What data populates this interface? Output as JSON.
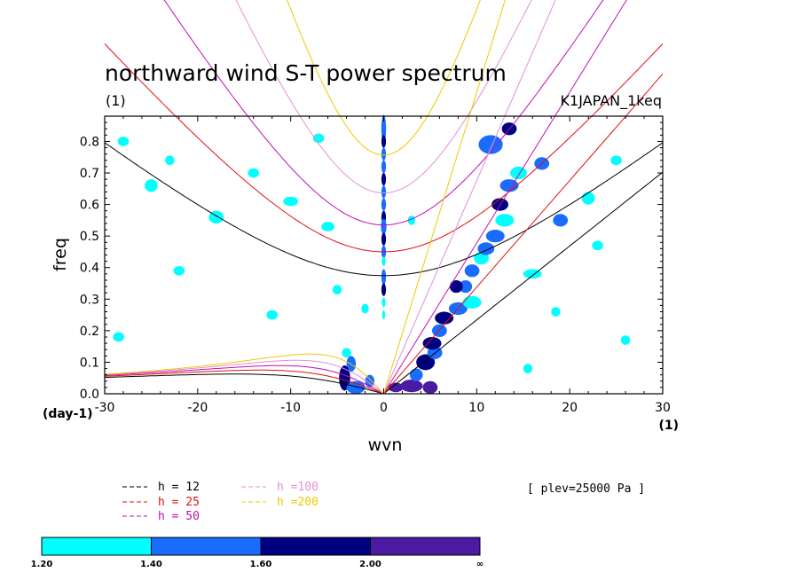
{
  "chart_data": {
    "type": "contour",
    "title": "northward wind S-T power spectrum",
    "subtitle_left": "(1)",
    "subtitle_right": "K1JAPAN_1keq",
    "xlabel": "wvn",
    "ylabel": "freq",
    "x_unit_label": "(1)",
    "y_unit_label": "(day-1)",
    "xlim": [
      -30,
      30
    ],
    "ylim": [
      0,
      0.88
    ],
    "x_ticks": [
      -30,
      -20,
      -10,
      0,
      10,
      20,
      30
    ],
    "x_tick_labels": [
      "-30",
      "-20",
      "-10",
      "0",
      "10",
      "20",
      "30"
    ],
    "y_ticks": [
      0.0,
      0.1,
      0.2,
      0.3,
      0.4,
      0.5,
      0.6,
      0.7,
      0.8
    ],
    "y_tick_labels": [
      "0.0",
      "0.1",
      "0.2",
      "0.3",
      "0.4",
      "0.5",
      "0.6",
      "0.7",
      "0.8"
    ],
    "annotation": "[ plev=25000 Pa ]",
    "dispersion_curves": [
      {
        "label": "h = 12",
        "h": 12,
        "color": "#000000"
      },
      {
        "label": "h = 25",
        "h": 25,
        "color": "#e01010"
      },
      {
        "label": "h = 50",
        "h": 50,
        "color": "#c010b0"
      },
      {
        "label": "h =100",
        "h": 100,
        "color": "#e090d8"
      },
      {
        "label": "h =200",
        "h": 200,
        "color": "#f0c800"
      }
    ],
    "colorbar": {
      "levels": [
        "1.20",
        "1.40",
        "1.60",
        "2.00",
        "∞"
      ],
      "colors": [
        "#00ffff",
        "#1a6cff",
        "#000080",
        "#4a1aa0"
      ]
    },
    "contour_regions": [
      {
        "x": 0,
        "y": 0.84,
        "w": 0.25,
        "h": 0.045,
        "level": 2
      },
      {
        "x": 0,
        "y": 0.8,
        "w": 0.25,
        "h": 0.02,
        "level": 3
      },
      {
        "x": 0,
        "y": 0.76,
        "w": 0.25,
        "h": 0.02,
        "level": 2
      },
      {
        "x": 0,
        "y": 0.72,
        "w": 0.25,
        "h": 0.02,
        "level": 2
      },
      {
        "x": 0,
        "y": 0.68,
        "w": 0.25,
        "h": 0.02,
        "level": 3
      },
      {
        "x": 0,
        "y": 0.64,
        "w": 0.25,
        "h": 0.02,
        "level": 2
      },
      {
        "x": 0,
        "y": 0.6,
        "w": 0.25,
        "h": 0.02,
        "level": 2
      },
      {
        "x": 0,
        "y": 0.56,
        "w": 0.25,
        "h": 0.02,
        "level": 3
      },
      {
        "x": 0,
        "y": 0.53,
        "w": 0.3,
        "h": 0.025,
        "level": 2
      },
      {
        "x": 0,
        "y": 0.49,
        "w": 0.25,
        "h": 0.02,
        "level": 3
      },
      {
        "x": 0,
        "y": 0.45,
        "w": 0.25,
        "h": 0.02,
        "level": 2
      },
      {
        "x": 0,
        "y": 0.42,
        "w": 0.2,
        "h": 0.015,
        "level": 1
      },
      {
        "x": 0,
        "y": 0.37,
        "w": 0.25,
        "h": 0.025,
        "level": 2
      },
      {
        "x": 0,
        "y": 0.33,
        "w": 0.25,
        "h": 0.02,
        "level": 3
      },
      {
        "x": 0,
        "y": 0.29,
        "w": 0.2,
        "h": 0.015,
        "level": 1
      },
      {
        "x": 0,
        "y": 0.25,
        "w": 0.15,
        "h": 0.015,
        "level": 1
      },
      {
        "x": -4,
        "y": 0.13,
        "w": 0.5,
        "h": 0.015,
        "level": 1
      },
      {
        "x": -3.5,
        "y": 0.095,
        "w": 0.5,
        "h": 0.025,
        "level": 2
      },
      {
        "x": -4.2,
        "y": 0.05,
        "w": 0.6,
        "h": 0.04,
        "level": 3
      },
      {
        "x": -3,
        "y": 0.02,
        "w": 1.0,
        "h": 0.02,
        "level": 2
      },
      {
        "x": -1.5,
        "y": 0.04,
        "w": 0.5,
        "h": 0.02,
        "level": 2
      },
      {
        "x": 1.3,
        "y": 0.02,
        "w": 0.8,
        "h": 0.015,
        "level": 4
      },
      {
        "x": 3,
        "y": 0.025,
        "w": 1.2,
        "h": 0.02,
        "level": 4
      },
      {
        "x": 5,
        "y": 0.02,
        "w": 0.8,
        "h": 0.02,
        "level": 4
      },
      {
        "x": 3.5,
        "y": 0.06,
        "w": 0.7,
        "h": 0.02,
        "level": 2
      },
      {
        "x": 4.5,
        "y": 0.1,
        "w": 1.0,
        "h": 0.025,
        "level": 3
      },
      {
        "x": 5.5,
        "y": 0.13,
        "w": 0.8,
        "h": 0.02,
        "level": 2
      },
      {
        "x": 5.2,
        "y": 0.16,
        "w": 1.0,
        "h": 0.02,
        "level": 3
      },
      {
        "x": 6,
        "y": 0.2,
        "w": 0.8,
        "h": 0.02,
        "level": 2
      },
      {
        "x": 6.5,
        "y": 0.24,
        "w": 1.0,
        "h": 0.02,
        "level": 3
      },
      {
        "x": 8,
        "y": 0.27,
        "w": 1.0,
        "h": 0.02,
        "level": 2
      },
      {
        "x": 9.5,
        "y": 0.29,
        "w": 1.0,
        "h": 0.02,
        "level": 1
      },
      {
        "x": 8.8,
        "y": 0.34,
        "w": 0.7,
        "h": 0.02,
        "level": 2
      },
      {
        "x": 7.8,
        "y": 0.34,
        "w": 0.7,
        "h": 0.02,
        "level": 3
      },
      {
        "x": 9.5,
        "y": 0.39,
        "w": 0.8,
        "h": 0.02,
        "level": 2
      },
      {
        "x": 10.5,
        "y": 0.43,
        "w": 0.8,
        "h": 0.02,
        "level": 1
      },
      {
        "x": 11,
        "y": 0.46,
        "w": 0.9,
        "h": 0.02,
        "level": 2
      },
      {
        "x": 12,
        "y": 0.5,
        "w": 1.0,
        "h": 0.02,
        "level": 2
      },
      {
        "x": 13,
        "y": 0.55,
        "w": 1.0,
        "h": 0.02,
        "level": 1
      },
      {
        "x": 12.5,
        "y": 0.6,
        "w": 0.9,
        "h": 0.02,
        "level": 3
      },
      {
        "x": 13.5,
        "y": 0.66,
        "w": 1.0,
        "h": 0.02,
        "level": 2
      },
      {
        "x": 14.5,
        "y": 0.7,
        "w": 0.9,
        "h": 0.02,
        "level": 1
      },
      {
        "x": 11.5,
        "y": 0.79,
        "w": 1.3,
        "h": 0.03,
        "level": 2
      },
      {
        "x": 13.5,
        "y": 0.84,
        "w": 0.8,
        "h": 0.02,
        "level": 3
      },
      {
        "x": 17,
        "y": 0.73,
        "w": 0.8,
        "h": 0.02,
        "level": 2
      },
      {
        "x": 19,
        "y": 0.55,
        "w": 0.8,
        "h": 0.02,
        "level": 2
      },
      {
        "x": 16,
        "y": 0.38,
        "w": 1.0,
        "h": 0.015,
        "level": 1
      },
      {
        "x": 22,
        "y": 0.62,
        "w": 0.7,
        "h": 0.02,
        "level": 1
      },
      {
        "x": -25,
        "y": 0.66,
        "w": 0.7,
        "h": 0.02,
        "level": 1
      },
      {
        "x": -28,
        "y": 0.8,
        "w": 0.6,
        "h": 0.015,
        "level": 1
      },
      {
        "x": -23,
        "y": 0.74,
        "w": 0.5,
        "h": 0.015,
        "level": 1
      },
      {
        "x": -18,
        "y": 0.56,
        "w": 0.8,
        "h": 0.02,
        "level": 1
      },
      {
        "x": -10,
        "y": 0.61,
        "w": 0.8,
        "h": 0.015,
        "level": 1
      },
      {
        "x": -6,
        "y": 0.53,
        "w": 0.7,
        "h": 0.015,
        "level": 1
      },
      {
        "x": -22,
        "y": 0.39,
        "w": 0.6,
        "h": 0.015,
        "level": 1
      },
      {
        "x": -5,
        "y": 0.33,
        "w": 0.5,
        "h": 0.015,
        "level": 1
      },
      {
        "x": -28.5,
        "y": 0.18,
        "w": 0.6,
        "h": 0.015,
        "level": 1
      },
      {
        "x": -12,
        "y": 0.25,
        "w": 0.6,
        "h": 0.015,
        "level": 1
      },
      {
        "x": -7,
        "y": 0.81,
        "w": 0.6,
        "h": 0.015,
        "level": 1
      },
      {
        "x": 25,
        "y": 0.74,
        "w": 0.6,
        "h": 0.015,
        "level": 1
      },
      {
        "x": 23,
        "y": 0.47,
        "w": 0.6,
        "h": 0.015,
        "level": 1
      },
      {
        "x": 26,
        "y": 0.17,
        "w": 0.5,
        "h": 0.015,
        "level": 1
      },
      {
        "x": 15.5,
        "y": 0.08,
        "w": 0.5,
        "h": 0.015,
        "level": 1
      },
      {
        "x": 18.5,
        "y": 0.26,
        "w": 0.5,
        "h": 0.015,
        "level": 1
      },
      {
        "x": -14,
        "y": 0.7,
        "w": 0.6,
        "h": 0.015,
        "level": 1
      },
      {
        "x": -2,
        "y": 0.27,
        "w": 0.4,
        "h": 0.015,
        "level": 1
      },
      {
        "x": 3,
        "y": 0.55,
        "w": 0.4,
        "h": 0.015,
        "level": 1
      }
    ]
  }
}
